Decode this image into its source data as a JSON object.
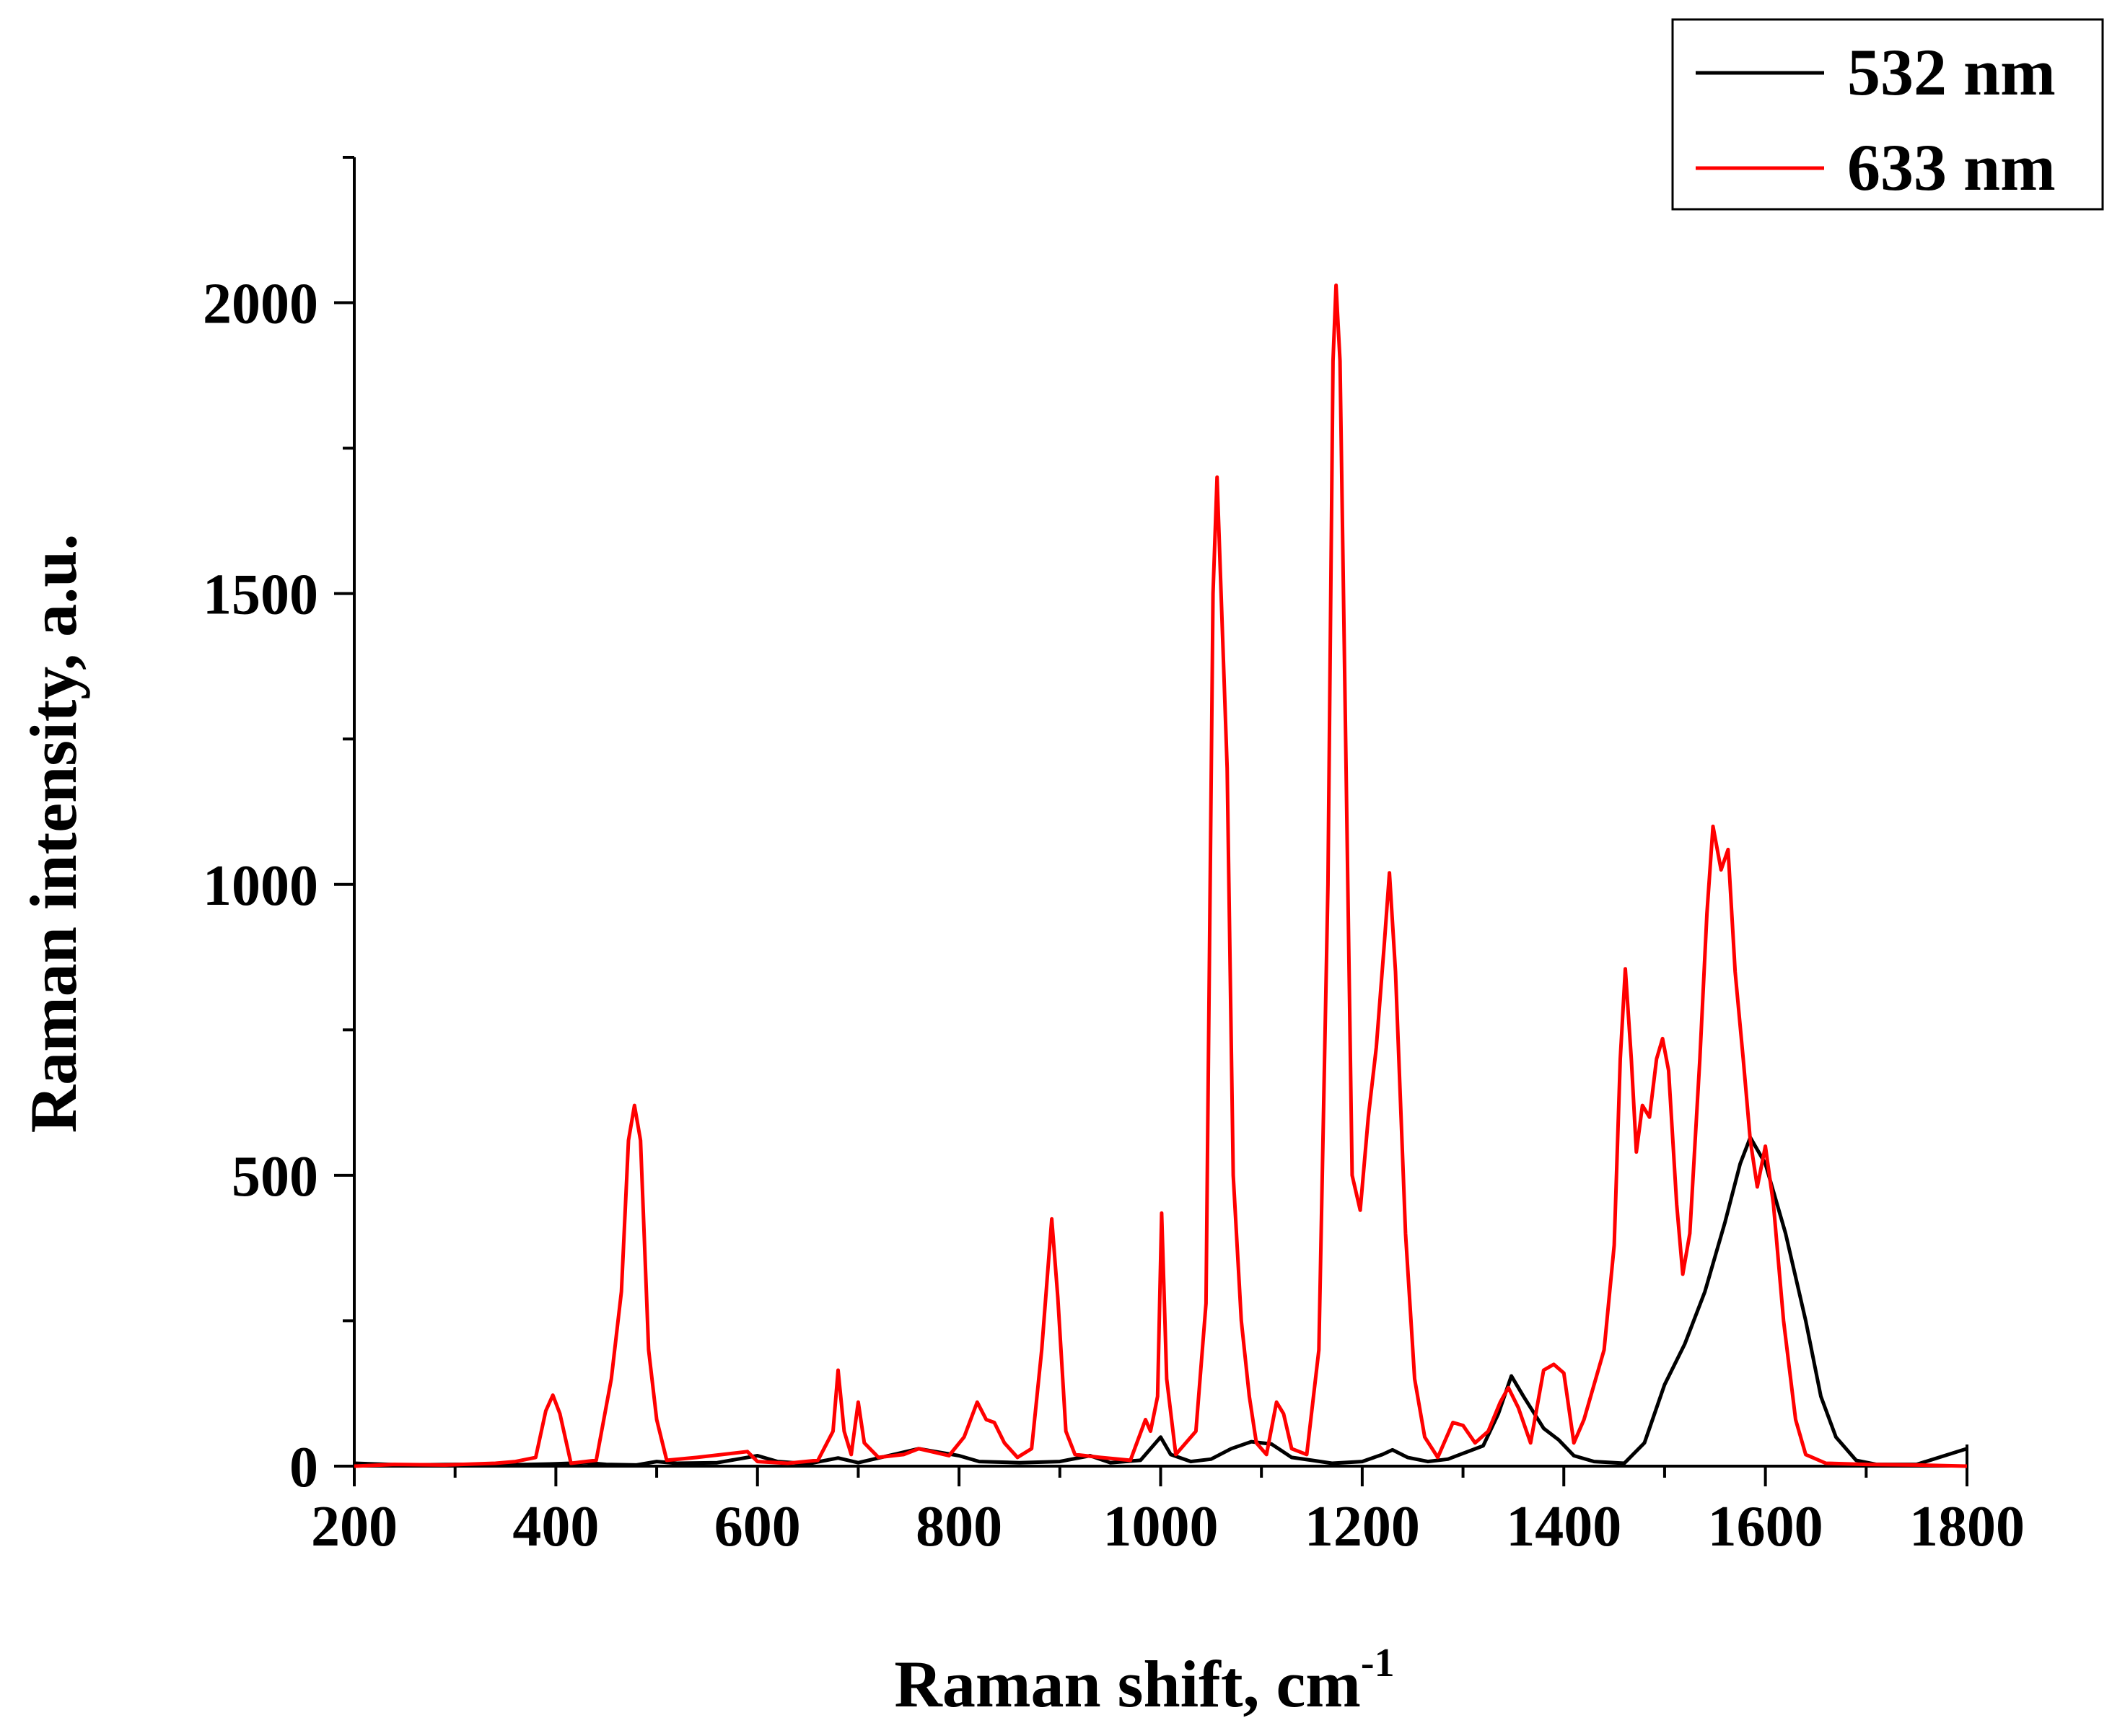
{
  "chart_data": {
    "type": "line",
    "xlabel": "Raman shift, cm",
    "xlabel_superscript": "-1",
    "ylabel": "Raman intensity, a.u.",
    "xlim": [
      200,
      1800
    ],
    "ylim": [
      0,
      2250
    ],
    "x_ticks": [
      200,
      400,
      600,
      800,
      1000,
      1200,
      1400,
      1600,
      1800
    ],
    "y_ticks": [
      0,
      500,
      1000,
      1500,
      2000
    ],
    "legend_position": "top-right",
    "series": [
      {
        "name": "532 nm",
        "color": "#000000",
        "points": [
          [
            200,
            5
          ],
          [
            250,
            2
          ],
          [
            300,
            3
          ],
          [
            350,
            2
          ],
          [
            400,
            4
          ],
          [
            430,
            6
          ],
          [
            450,
            3
          ],
          [
            480,
            2
          ],
          [
            500,
            8
          ],
          [
            520,
            5
          ],
          [
            560,
            6
          ],
          [
            600,
            18
          ],
          [
            620,
            8
          ],
          [
            650,
            4
          ],
          [
            680,
            14
          ],
          [
            700,
            6
          ],
          [
            740,
            22
          ],
          [
            760,
            30
          ],
          [
            780,
            24
          ],
          [
            800,
            18
          ],
          [
            820,
            8
          ],
          [
            860,
            6
          ],
          [
            900,
            8
          ],
          [
            930,
            18
          ],
          [
            950,
            6
          ],
          [
            980,
            10
          ],
          [
            1000,
            50
          ],
          [
            1010,
            20
          ],
          [
            1030,
            8
          ],
          [
            1050,
            12
          ],
          [
            1070,
            30
          ],
          [
            1090,
            42
          ],
          [
            1110,
            38
          ],
          [
            1130,
            15
          ],
          [
            1150,
            10
          ],
          [
            1170,
            5
          ],
          [
            1200,
            8
          ],
          [
            1220,
            20
          ],
          [
            1230,
            28
          ],
          [
            1245,
            15
          ],
          [
            1265,
            8
          ],
          [
            1285,
            12
          ],
          [
            1300,
            22
          ],
          [
            1320,
            35
          ],
          [
            1335,
            90
          ],
          [
            1348,
            155
          ],
          [
            1360,
            120
          ],
          [
            1380,
            65
          ],
          [
            1395,
            45
          ],
          [
            1410,
            18
          ],
          [
            1430,
            8
          ],
          [
            1460,
            5
          ],
          [
            1480,
            40
          ],
          [
            1500,
            140
          ],
          [
            1520,
            210
          ],
          [
            1540,
            300
          ],
          [
            1560,
            420
          ],
          [
            1575,
            520
          ],
          [
            1585,
            565
          ],
          [
            1600,
            520
          ],
          [
            1620,
            400
          ],
          [
            1640,
            250
          ],
          [
            1655,
            120
          ],
          [
            1670,
            50
          ],
          [
            1690,
            10
          ],
          [
            1710,
            3
          ],
          [
            1750,
            3
          ],
          [
            1800,
            30
          ]
        ]
      },
      {
        "name": "633 nm",
        "color": "#ff0000",
        "points": [
          [
            200,
            0
          ],
          [
            240,
            3
          ],
          [
            290,
            2
          ],
          [
            340,
            5
          ],
          [
            360,
            8
          ],
          [
            380,
            15
          ],
          [
            390,
            95
          ],
          [
            397,
            122
          ],
          [
            404,
            90
          ],
          [
            415,
            5
          ],
          [
            440,
            10
          ],
          [
            455,
            150
          ],
          [
            465,
            300
          ],
          [
            472,
            560
          ],
          [
            478,
            620
          ],
          [
            484,
            560
          ],
          [
            492,
            200
          ],
          [
            500,
            80
          ],
          [
            510,
            10
          ],
          [
            540,
            15
          ],
          [
            590,
            25
          ],
          [
            600,
            8
          ],
          [
            630,
            5
          ],
          [
            660,
            10
          ],
          [
            675,
            60
          ],
          [
            680,
            165
          ],
          [
            686,
            60
          ],
          [
            693,
            20
          ],
          [
            700,
            110
          ],
          [
            706,
            40
          ],
          [
            720,
            15
          ],
          [
            745,
            20
          ],
          [
            760,
            30
          ],
          [
            790,
            18
          ],
          [
            805,
            50
          ],
          [
            818,
            110
          ],
          [
            827,
            80
          ],
          [
            835,
            75
          ],
          [
            845,
            40
          ],
          [
            858,
            15
          ],
          [
            872,
            30
          ],
          [
            882,
            200
          ],
          [
            892,
            425
          ],
          [
            898,
            290
          ],
          [
            906,
            60
          ],
          [
            915,
            20
          ],
          [
            940,
            15
          ],
          [
            970,
            10
          ],
          [
            985,
            80
          ],
          [
            990,
            60
          ],
          [
            997,
            120
          ],
          [
            1001,
            435
          ],
          [
            1006,
            150
          ],
          [
            1015,
            20
          ],
          [
            1035,
            60
          ],
          [
            1045,
            280
          ],
          [
            1052,
            1500
          ],
          [
            1056,
            1700
          ],
          [
            1060,
            1500
          ],
          [
            1066,
            1200
          ],
          [
            1072,
            500
          ],
          [
            1080,
            250
          ],
          [
            1088,
            120
          ],
          [
            1095,
            40
          ],
          [
            1105,
            20
          ],
          [
            1115,
            110
          ],
          [
            1122,
            90
          ],
          [
            1130,
            30
          ],
          [
            1145,
            20
          ],
          [
            1157,
            200
          ],
          [
            1166,
            1000
          ],
          [
            1171,
            1900
          ],
          [
            1174,
            2030
          ],
          [
            1178,
            1900
          ],
          [
            1184,
            1200
          ],
          [
            1190,
            500
          ],
          [
            1198,
            440
          ],
          [
            1206,
            600
          ],
          [
            1214,
            720
          ],
          [
            1222,
            900
          ],
          [
            1227,
            1020
          ],
          [
            1233,
            850
          ],
          [
            1243,
            400
          ],
          [
            1252,
            150
          ],
          [
            1262,
            50
          ],
          [
            1275,
            15
          ],
          [
            1290,
            75
          ],
          [
            1300,
            70
          ],
          [
            1312,
            40
          ],
          [
            1325,
            60
          ],
          [
            1337,
            110
          ],
          [
            1345,
            135
          ],
          [
            1355,
            100
          ],
          [
            1367,
            40
          ],
          [
            1380,
            165
          ],
          [
            1390,
            175
          ],
          [
            1400,
            160
          ],
          [
            1410,
            40
          ],
          [
            1420,
            80
          ],
          [
            1440,
            200
          ],
          [
            1450,
            380
          ],
          [
            1456,
            700
          ],
          [
            1461,
            855
          ],
          [
            1467,
            700
          ],
          [
            1472,
            540
          ],
          [
            1478,
            620
          ],
          [
            1485,
            600
          ],
          [
            1492,
            700
          ],
          [
            1498,
            735
          ],
          [
            1504,
            680
          ],
          [
            1512,
            450
          ],
          [
            1518,
            330
          ],
          [
            1525,
            400
          ],
          [
            1535,
            700
          ],
          [
            1542,
            950
          ],
          [
            1548,
            1100
          ],
          [
            1556,
            1025
          ],
          [
            1563,
            1060
          ],
          [
            1570,
            850
          ],
          [
            1578,
            700
          ],
          [
            1585,
            560
          ],
          [
            1592,
            480
          ],
          [
            1600,
            550
          ],
          [
            1608,
            450
          ],
          [
            1618,
            250
          ],
          [
            1630,
            80
          ],
          [
            1640,
            20
          ],
          [
            1660,
            5
          ],
          [
            1700,
            3
          ],
          [
            1750,
            2
          ],
          [
            1800,
            0
          ]
        ]
      }
    ]
  }
}
